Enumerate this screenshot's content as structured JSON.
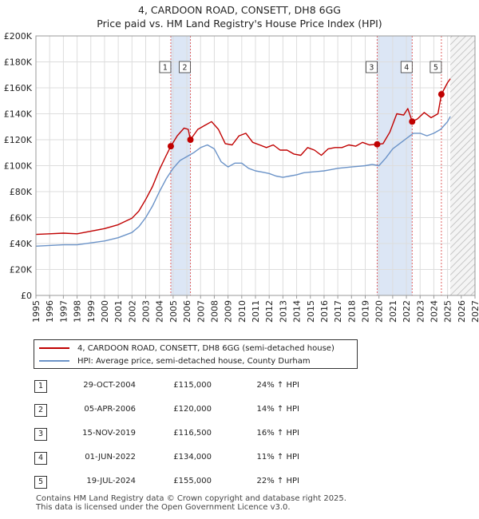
{
  "title": "4, CARDOON ROAD, CONSETT, DH8 6GG",
  "subtitle": "Price paid vs. HM Land Registry's House Price Index (HPI)",
  "colors": {
    "property": "#c00000",
    "hpi": "#6b93c8",
    "shade": "#dce6f5",
    "marker_line": "#e06060"
  },
  "chart_data": {
    "type": "line",
    "xlim": [
      1995,
      2027
    ],
    "ylim": [
      0,
      200000
    ],
    "y_ticks": [
      0,
      20000,
      40000,
      60000,
      80000,
      100000,
      120000,
      140000,
      160000,
      180000,
      200000
    ],
    "y_tick_labels": [
      "£0",
      "£20K",
      "£40K",
      "£60K",
      "£80K",
      "£100K",
      "£120K",
      "£140K",
      "£160K",
      "£180K",
      "£200K"
    ],
    "x_ticks": [
      1995,
      1996,
      1997,
      1998,
      1999,
      2000,
      2001,
      2002,
      2003,
      2004,
      2005,
      2006,
      2007,
      2008,
      2009,
      2010,
      2011,
      2012,
      2013,
      2014,
      2015,
      2016,
      2017,
      2018,
      2019,
      2020,
      2021,
      2022,
      2023,
      2024,
      2025,
      2026,
      2027
    ],
    "x_tick_labels": [
      "1995",
      "1996",
      "1997",
      "1998",
      "1999",
      "2000",
      "2001",
      "2002",
      "2003",
      "2004",
      "2005",
      "2006",
      "2007",
      "2008",
      "2009",
      "2010",
      "2011",
      "2012",
      "2013",
      "2014",
      "2015",
      "2016",
      "2017",
      "2018",
      "2019",
      "2020",
      "2021",
      "2022",
      "2023",
      "2024",
      "2025",
      "2026",
      "2027"
    ],
    "grid": true,
    "future_hatch_from": 2025.2,
    "shaded_ranges": [
      [
        2004.83,
        2006.26
      ],
      [
        2019.87,
        2022.42
      ]
    ],
    "series": [
      {
        "name": "4, CARDOON ROAD, CONSETT, DH8 6GG (semi-detached house)",
        "x": [
          1995.0,
          1996.0,
          1997.0,
          1998.0,
          1999.0,
          2000.0,
          2001.0,
          2002.0,
          2002.5,
          2003.0,
          2003.5,
          2004.0,
          2004.5,
          2004.83,
          2005.3,
          2005.8,
          2006.1,
          2006.26,
          2006.8,
          2007.3,
          2007.8,
          2008.3,
          2008.8,
          2009.3,
          2009.8,
          2010.3,
          2010.8,
          2011.3,
          2011.8,
          2012.3,
          2012.8,
          2013.3,
          2013.8,
          2014.3,
          2014.8,
          2015.3,
          2015.8,
          2016.3,
          2016.8,
          2017.3,
          2017.8,
          2018.3,
          2018.8,
          2019.3,
          2019.87,
          2020.3,
          2020.8,
          2021.3,
          2021.8,
          2022.1,
          2022.42,
          2022.8,
          2023.3,
          2023.8,
          2024.3,
          2024.55,
          2024.8,
          2025.0,
          2025.2
        ],
        "y": [
          47000,
          47500,
          48000,
          47500,
          49500,
          51500,
          54500,
          59500,
          65000,
          74000,
          84000,
          97000,
          108000,
          115000,
          123000,
          129000,
          128000,
          120000,
          128000,
          131000,
          134000,
          128000,
          117000,
          116000,
          123000,
          125000,
          118000,
          116000,
          114000,
          116000,
          112000,
          112000,
          109000,
          108000,
          114000,
          112000,
          108000,
          113000,
          114000,
          114000,
          116000,
          115000,
          118000,
          116000,
          116500,
          117000,
          126000,
          140000,
          139000,
          144000,
          134000,
          136000,
          141000,
          137000,
          140000,
          155000,
          160000,
          164000,
          167000
        ]
      },
      {
        "name": "HPI: Average price, semi-detached house, County Durham",
        "x": [
          1995.0,
          1996.0,
          1997.0,
          1998.0,
          1999.0,
          2000.0,
          2001.0,
          2002.0,
          2002.5,
          2003.0,
          2003.5,
          2004.0,
          2004.5,
          2005.0,
          2005.5,
          2006.0,
          2006.5,
          2007.0,
          2007.5,
          2008.0,
          2008.5,
          2009.0,
          2009.5,
          2010.0,
          2010.5,
          2011.0,
          2011.5,
          2012.0,
          2012.5,
          2013.0,
          2013.5,
          2014.0,
          2014.5,
          2015.0,
          2015.5,
          2016.0,
          2016.5,
          2017.0,
          2017.5,
          2018.0,
          2018.5,
          2019.0,
          2019.5,
          2020.0,
          2020.5,
          2021.0,
          2021.5,
          2022.0,
          2022.5,
          2023.0,
          2023.5,
          2024.0,
          2024.5,
          2025.0,
          2025.2
        ],
        "y": [
          38000,
          38500,
          39000,
          39000,
          40500,
          42000,
          44500,
          48500,
          53000,
          60000,
          69000,
          80000,
          90000,
          98000,
          104000,
          107000,
          110000,
          114000,
          116000,
          113000,
          103000,
          99000,
          102000,
          102000,
          98000,
          96000,
          95000,
          94000,
          92000,
          91000,
          92000,
          93000,
          94500,
          95000,
          95500,
          96000,
          97000,
          98000,
          98500,
          99000,
          99500,
          100000,
          101000,
          100000,
          106000,
          113000,
          117000,
          121000,
          125000,
          125000,
          123000,
          125000,
          128000,
          134000,
          138000
        ]
      }
    ],
    "sales": [
      {
        "label": "1",
        "x": 2004.83,
        "y": 115000
      },
      {
        "label": "2",
        "x": 2006.26,
        "y": 120000
      },
      {
        "label": "3",
        "x": 2019.87,
        "y": 116500
      },
      {
        "label": "4",
        "x": 2022.42,
        "y": 134000
      },
      {
        "label": "5",
        "x": 2024.55,
        "y": 155000
      }
    ]
  },
  "legend": {
    "property": "4, CARDOON ROAD, CONSETT, DH8 6GG (semi-detached house)",
    "hpi": "HPI: Average price, semi-detached house, County Durham"
  },
  "transactions": [
    {
      "num": "1",
      "date": "29-OCT-2004",
      "price": "£115,000",
      "hpi": "24% ↑ HPI"
    },
    {
      "num": "2",
      "date": "05-APR-2006",
      "price": "£120,000",
      "hpi": "14% ↑ HPI"
    },
    {
      "num": "3",
      "date": "15-NOV-2019",
      "price": "£116,500",
      "hpi": "16% ↑ HPI"
    },
    {
      "num": "4",
      "date": "01-JUN-2022",
      "price": "£134,000",
      "hpi": "11% ↑ HPI"
    },
    {
      "num": "5",
      "date": "19-JUL-2024",
      "price": "£155,000",
      "hpi": "22% ↑ HPI"
    }
  ],
  "footer": {
    "line1": "Contains HM Land Registry data © Crown copyright and database right 2025.",
    "line2": "This data is licensed under the Open Government Licence v3.0."
  }
}
